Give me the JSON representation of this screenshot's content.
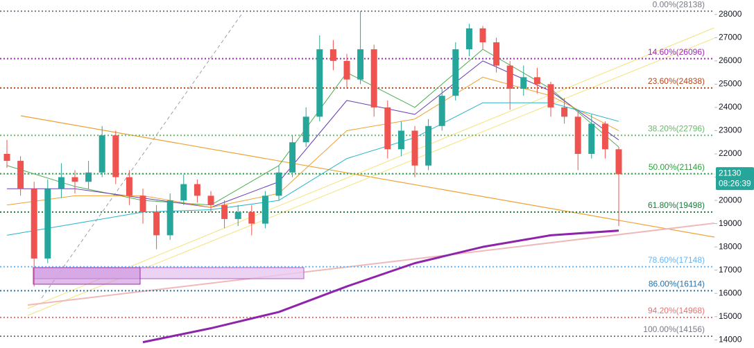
{
  "chart_data": {
    "type": "candlestick",
    "ylim": [
      13800,
      28620
    ],
    "yticks": [
      14000,
      15000,
      16000,
      17000,
      18000,
      19000,
      20000,
      21000,
      22000,
      23000,
      24000,
      25000,
      26000,
      27000,
      28000
    ],
    "up_color": "#26a69a",
    "down_color": "#ef5350",
    "open": [
      22000,
      21700,
      20500,
      17500,
      20500,
      21000,
      20800,
      21200,
      22800,
      21000,
      20200,
      19500,
      18500,
      20000,
      20700,
      20200,
      19800,
      19200,
      19500,
      19000,
      20200,
      21200,
      22500,
      23600,
      26500,
      26000,
      25200,
      26500,
      24000,
      22200,
      23000,
      21500,
      23200,
      24500,
      26500,
      27400,
      26800,
      25800,
      24800,
      25300,
      25000,
      24000,
      23600,
      22000,
      23300,
      22200
    ],
    "high": [
      22600,
      21900,
      20800,
      20900,
      21600,
      21300,
      21700,
      23200,
      23000,
      21300,
      20500,
      19800,
      20300,
      21100,
      20900,
      20400,
      20000,
      19800,
      19800,
      20400,
      21500,
      22800,
      24000,
      27100,
      26900,
      26300,
      28138,
      26700,
      24300,
      23400,
      23200,
      23500,
      24800,
      26800,
      27600,
      27500,
      27000,
      26000,
      25800,
      25700,
      25100,
      24400,
      23800,
      23700,
      23400,
      22300
    ],
    "low": [
      21400,
      20200,
      16300,
      17300,
      20100,
      20300,
      20500,
      21000,
      20700,
      19800,
      19000,
      17900,
      18300,
      19800,
      19900,
      19500,
      18800,
      18900,
      18500,
      18800,
      20000,
      21000,
      22300,
      23400,
      25600,
      24800,
      25000,
      23600,
      21800,
      21900,
      21000,
      21300,
      23000,
      24300,
      26200,
      26500,
      25500,
      23900,
      24500,
      24600,
      23600,
      23300,
      21300,
      21800,
      21800,
      18900
    ],
    "close": [
      21700,
      20500,
      17500,
      20500,
      21000,
      20800,
      21200,
      22800,
      21000,
      20200,
      19500,
      18500,
      20000,
      20700,
      20200,
      19800,
      19200,
      19500,
      19000,
      20200,
      21200,
      22500,
      23600,
      26500,
      26000,
      25200,
      26500,
      24000,
      22200,
      23000,
      21500,
      23200,
      24500,
      26500,
      27400,
      26800,
      25800,
      24800,
      25300,
      25000,
      24000,
      23600,
      22000,
      23300,
      22200,
      21130
    ],
    "ma_x": [
      0,
      5,
      10,
      15,
      20,
      25,
      30,
      35,
      40,
      45
    ],
    "series": [
      {
        "color": "#4caf50",
        "width": 1,
        "values": [
          21500,
          20600,
          20000,
          19800,
          21500,
          25500,
          24000,
          26500,
          24800,
          22300
        ]
      },
      {
        "color": "#673ab7",
        "width": 1,
        "values": [
          20500,
          20500,
          20100,
          19700,
          20800,
          24300,
          23700,
          26000,
          24700,
          22600
        ]
      },
      {
        "color": "#f0a030",
        "width": 1,
        "values": [
          19800,
          20200,
          20200,
          19700,
          20300,
          23000,
          23500,
          25300,
          24500,
          23000
        ]
      },
      {
        "color": "#26b5c8",
        "width": 1,
        "values": [
          18500,
          19000,
          19500,
          19600,
          20000,
          21800,
          22700,
          24200,
          24200,
          23400
        ]
      },
      {
        "color": "#8e24aa",
        "width": 3,
        "values": [
          null,
          null,
          13900,
          14500,
          15200,
          16300,
          17300,
          18000,
          18500,
          18700
        ]
      }
    ],
    "fib_levels": [
      {
        "label": "0.00%(28138)",
        "value": 28138,
        "color": "#787b86"
      },
      {
        "label": "14.60%(26096)",
        "value": 26096,
        "color": "#9c27b0"
      },
      {
        "label": "23.60%(24838)",
        "value": 24838,
        "color": "#b5451b"
      },
      {
        "label": "38.20%(22796)",
        "value": 22796,
        "color": "#66bb6a"
      },
      {
        "label": "50.00%(21146)",
        "value": 21146,
        "color": "#2e9e3e"
      },
      {
        "label": "61.80%(19498)",
        "value": 19498,
        "color": "#1b7a3a"
      },
      {
        "label": "78.60%(17148)",
        "value": 17148,
        "color": "#64b5f6"
      },
      {
        "label": "86.00%(16114)",
        "value": 16114,
        "color": "#2872a8"
      },
      {
        "label": "94.20%(14968)",
        "value": 14968,
        "color": "#e57373"
      },
      {
        "label": "100.00%(14156)",
        "value": 14156,
        "color": "#787b86"
      }
    ],
    "last_price": 21130,
    "countdown": "08:26:39",
    "last_color": "#26a69a"
  }
}
